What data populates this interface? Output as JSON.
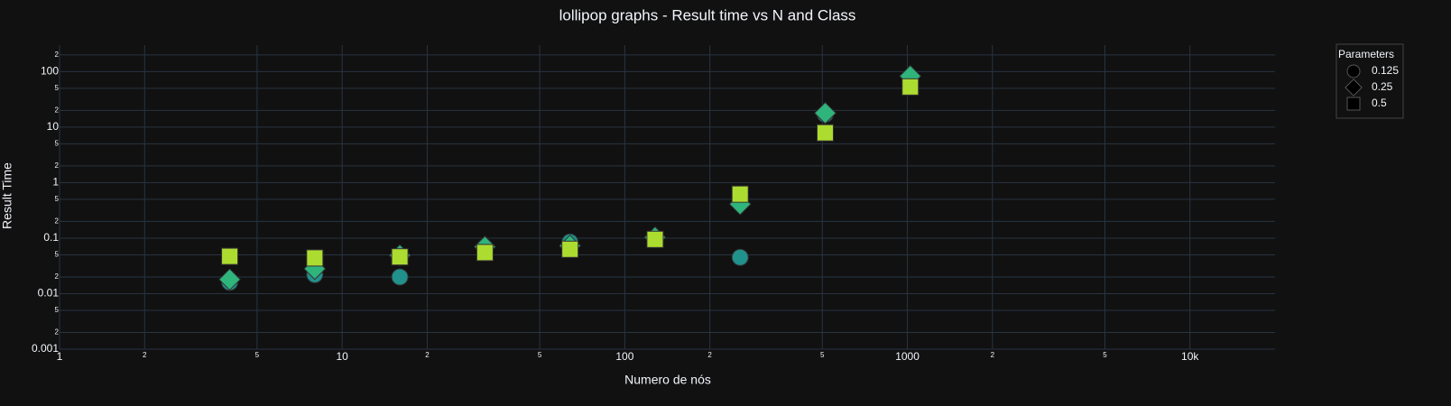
{
  "chart_data": {
    "type": "scatter",
    "title": "lollipop graphs - Result time vs N and Class",
    "x_label": "Numero de nós",
    "y_label": "Result Time",
    "xscale": "log",
    "yscale": "log",
    "grid": true,
    "legend_title": "Parameters",
    "legend_position": "top-right",
    "x": [
      4,
      8,
      16,
      32,
      64,
      128,
      256,
      512,
      1024
    ],
    "series": [
      {
        "name": "0.125",
        "symbol": "circle",
        "color": "#21918c",
        "values": [
          0.016,
          0.022,
          0.02,
          0.068,
          0.085,
          0.1,
          0.045,
          17,
          80
        ]
      },
      {
        "name": "0.25",
        "symbol": "diamond",
        "color": "#2fb47c",
        "values": [
          0.018,
          0.028,
          0.049,
          0.07,
          0.073,
          0.103,
          0.41,
          17.9,
          83
        ]
      },
      {
        "name": "0.5",
        "symbol": "square",
        "color": "#addc30",
        "values": [
          0.047,
          0.044,
          0.046,
          0.055,
          0.063,
          0.095,
          0.62,
          7.9,
          53
        ]
      }
    ],
    "xlim": [
      1,
      20000
    ],
    "xticks": [
      1,
      2,
      5,
      10,
      {
        "value": 20,
        "label": "2"
      },
      {
        "value": 50,
        "label": "5"
      },
      100,
      {
        "value": 200,
        "label": "2"
      },
      {
        "value": 500,
        "label": "5"
      },
      1000,
      {
        "value": 2000,
        "label": "2"
      },
      {
        "value": 5000,
        "label": "5"
      },
      {
        "value": 10000,
        "label": "10k"
      }
    ],
    "ylim": [
      0.001,
      300
    ],
    "yticks": [
      0.001,
      {
        "value": 0.002,
        "label": "2"
      },
      {
        "value": 0.005,
        "label": "5"
      },
      0.01,
      {
        "value": 0.02,
        "label": "2"
      },
      {
        "value": 0.05,
        "label": "5"
      },
      0.1,
      {
        "value": 0.2,
        "label": "2"
      },
      {
        "value": 0.5,
        "label": "5"
      },
      1,
      2,
      5,
      10,
      {
        "value": 20,
        "label": "2"
      },
      {
        "value": 50,
        "label": "5"
      },
      100,
      {
        "value": 200,
        "label": "2"
      }
    ]
  }
}
